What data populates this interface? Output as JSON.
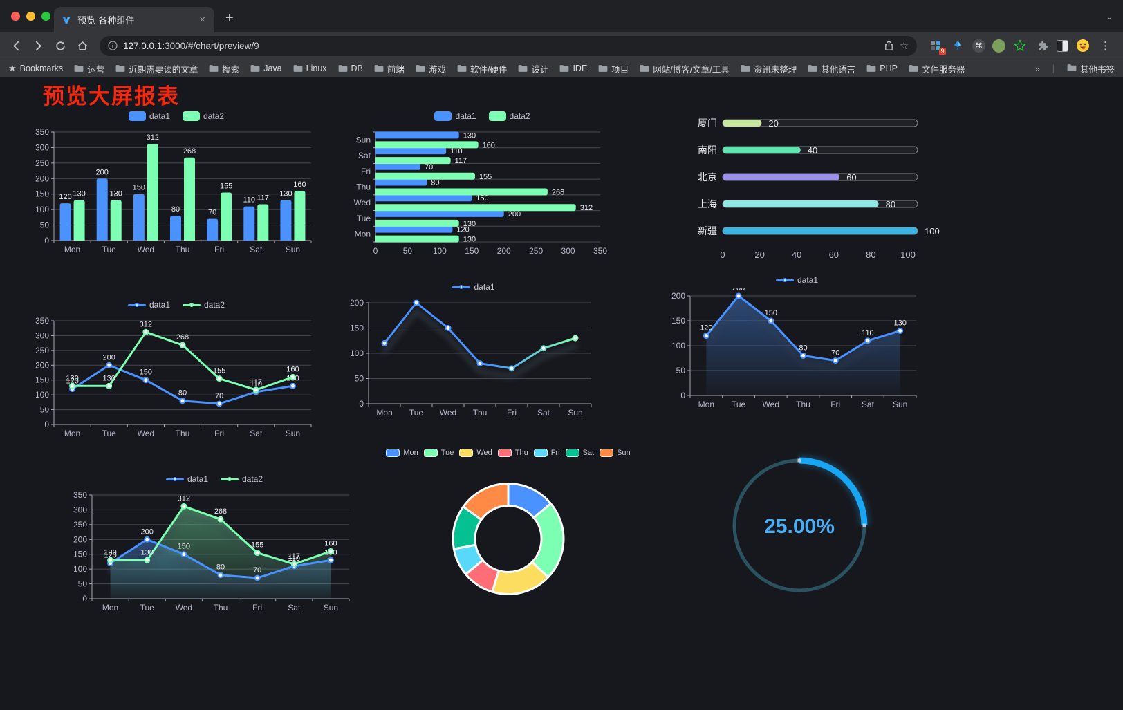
{
  "browser": {
    "tab": {
      "title": "预览-各种组件"
    },
    "url_host": "127.0.0.1",
    "url_rest": ":3000/#/chart/preview/9",
    "bookmarks_label": "Bookmarks",
    "bookmarks": [
      "运营",
      "近期需要读的文章",
      "搜索",
      "Java",
      "Linux",
      "DB",
      "前端",
      "游戏",
      "软件/硬件",
      "设计",
      "IDE",
      "项目",
      "网站/博客/文章/工具",
      "资讯未整理",
      "其他语言",
      "PHP",
      "文件服务器"
    ],
    "other_bookmarks": "其他书签",
    "extension_badge": "9",
    "glyphs": {
      "close_tab": "×",
      "new_tab": "+",
      "tab_overflow": "⌄",
      "menu": "⋮",
      "bookmarks_star": "★",
      "star_outline": "☆",
      "cmd": "⌘",
      "bookmarks_overflow": "»",
      "divider": "|"
    }
  },
  "page": {
    "title": "预览大屏报表",
    "title_color": "#f5270e"
  },
  "chart_data": [
    {
      "id": "grouped-bar",
      "type": "bar",
      "categories": [
        "Mon",
        "Tue",
        "Wed",
        "Thu",
        "Fri",
        "Sat",
        "Sun"
      ],
      "series": [
        {
          "name": "data1",
          "color": "#4992ff",
          "values": [
            120,
            200,
            150,
            80,
            70,
            110,
            130
          ]
        },
        {
          "name": "data2",
          "color": "#7cffb2",
          "values": [
            130,
            130,
            312,
            268,
            155,
            117,
            160
          ]
        }
      ],
      "ylim": [
        0,
        350
      ],
      "ystep": 50,
      "grid": true,
      "legend_position": "top"
    },
    {
      "id": "horizontal-bar",
      "type": "hbar",
      "categories": [
        "Mon",
        "Tue",
        "Wed",
        "Thu",
        "Fri",
        "Sat",
        "Sun"
      ],
      "series": [
        {
          "name": "data1",
          "color": "#4992ff",
          "values": [
            120,
            200,
            150,
            80,
            70,
            110,
            130
          ]
        },
        {
          "name": "data2",
          "color": "#7cffb2",
          "values": [
            130,
            130,
            312,
            268,
            155,
            117,
            160
          ]
        }
      ],
      "xlim": [
        0,
        350
      ],
      "xstep": 50,
      "legend_position": "top"
    },
    {
      "id": "progress-bars",
      "type": "progress",
      "items": [
        {
          "label": "厦门",
          "value": 20,
          "color": "#c8e79e"
        },
        {
          "label": "南阳",
          "value": 40,
          "color": "#60e2ae"
        },
        {
          "label": "北京",
          "value": 60,
          "color": "#9a90e8"
        },
        {
          "label": "上海",
          "value": 80,
          "color": "#8fe7e3"
        },
        {
          "label": "新疆",
          "value": 100,
          "color": "#3cb4e2"
        }
      ],
      "xlim": [
        0,
        100
      ],
      "xstep": 20
    },
    {
      "id": "line-two-series",
      "type": "line",
      "categories": [
        "Mon",
        "Tue",
        "Wed",
        "Thu",
        "Fri",
        "Sat",
        "Sun"
      ],
      "series": [
        {
          "name": "data1",
          "color": "#4992ff",
          "values": [
            120,
            200,
            150,
            80,
            70,
            110,
            130
          ]
        },
        {
          "name": "data2",
          "color": "#7cffb2",
          "values": [
            130,
            130,
            312,
            268,
            155,
            117,
            160
          ]
        }
      ],
      "ylim": [
        0,
        350
      ],
      "ystep": 50,
      "labels": true
    },
    {
      "id": "line-gradient",
      "type": "line",
      "categories": [
        "Mon",
        "Tue",
        "Wed",
        "Thu",
        "Fri",
        "Sat",
        "Sun"
      ],
      "series": [
        {
          "name": "data1",
          "color": "#4992ff",
          "values": [
            120,
            200,
            150,
            80,
            70,
            110,
            130
          ]
        }
      ],
      "ylim": [
        0,
        200
      ],
      "ystep": 50,
      "labels": false,
      "gradient_stroke": [
        "#4992ff",
        "#7cffb2"
      ],
      "shadow": true,
      "shadow_opacity": 0.55
    },
    {
      "id": "line-area",
      "type": "line",
      "categories": [
        "Mon",
        "Tue",
        "Wed",
        "Thu",
        "Fri",
        "Sat",
        "Sun"
      ],
      "series": [
        {
          "name": "data1",
          "color": "#4992ff",
          "values": [
            120,
            200,
            150,
            80,
            70,
            110,
            130
          ],
          "area": true
        }
      ],
      "ylim": [
        0,
        200
      ],
      "ystep": 50,
      "labels": true,
      "shadow": true,
      "shadow_opacity": 0.3
    },
    {
      "id": "area-two-series",
      "type": "line",
      "categories": [
        "Mon",
        "Tue",
        "Wed",
        "Thu",
        "Fri",
        "Sat",
        "Sun"
      ],
      "series": [
        {
          "name": "data1",
          "color": "#4992ff",
          "values": [
            120,
            200,
            150,
            80,
            70,
            110,
            130
          ],
          "area": true
        },
        {
          "name": "data2",
          "color": "#7cffb2",
          "values": [
            130,
            130,
            312,
            268,
            155,
            117,
            160
          ],
          "area": true
        }
      ],
      "ylim": [
        0,
        350
      ],
      "ystep": 50,
      "labels": true,
      "shadow": true,
      "shadow_opacity": 0.3
    },
    {
      "id": "rounded-doughnut",
      "type": "pie",
      "items": [
        {
          "label": "Mon",
          "value": 120,
          "color": "#4992ff"
        },
        {
          "label": "Tue",
          "value": 200,
          "color": "#7cffb2"
        },
        {
          "label": "Wed",
          "value": 150,
          "color": "#fddd60"
        },
        {
          "label": "Thu",
          "value": 80,
          "color": "#ff6e76"
        },
        {
          "label": "Fri",
          "value": 70,
          "color": "#58d9f9"
        },
        {
          "label": "Sat",
          "value": 110,
          "color": "#05c091"
        },
        {
          "label": "Sun",
          "value": 130,
          "color": "#ff8a45"
        }
      ],
      "inner_radius_ratio": 0.6
    },
    {
      "id": "gauge-percent",
      "type": "gauge",
      "value": 25,
      "label": "25.00%",
      "color": "#18a6f2",
      "track_color": "#2a5260",
      "text_color": "#49aef3"
    }
  ]
}
